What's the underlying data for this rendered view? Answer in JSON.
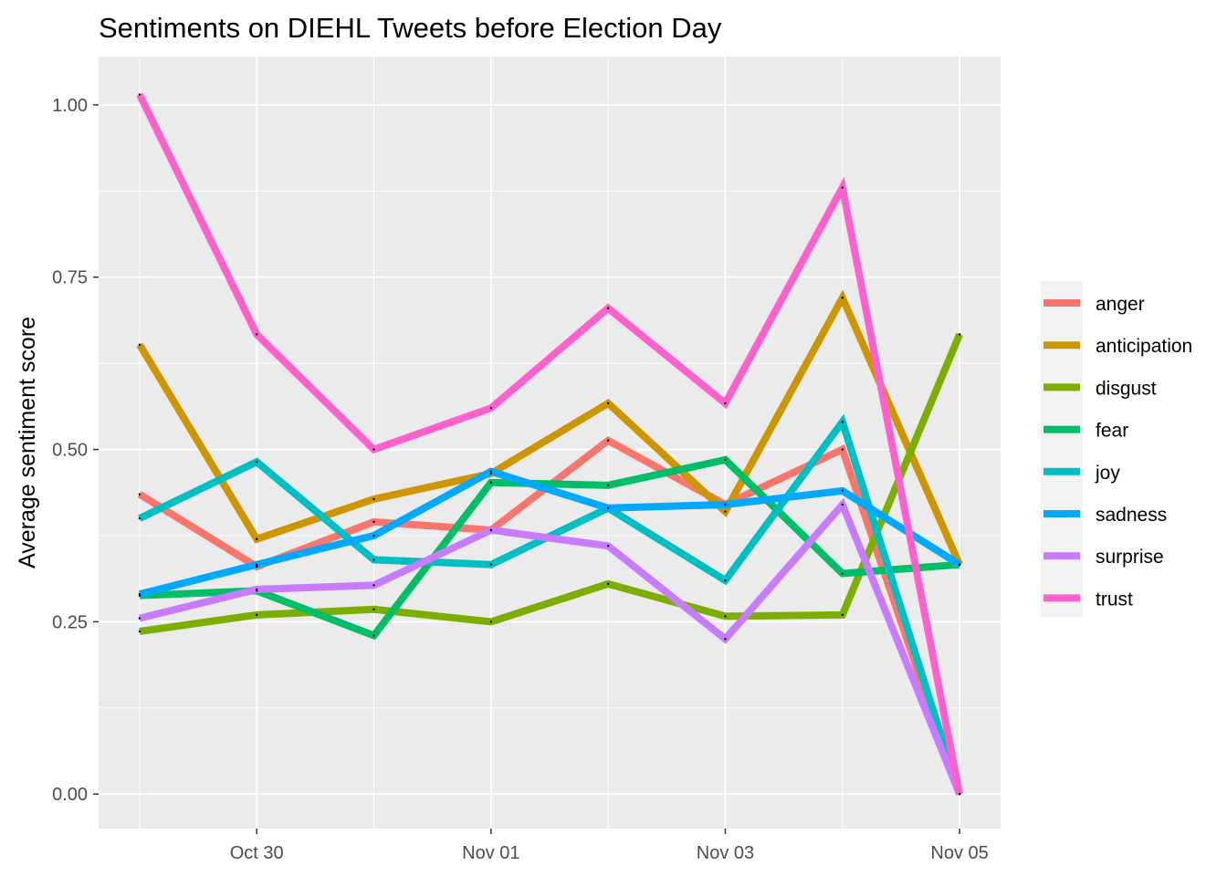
{
  "chart_data": {
    "type": "line",
    "title": "Sentiments on DIEHL Tweets before Election Day",
    "xlabel": "",
    "ylabel": "Average sentiment score",
    "x": [
      "2022-10-29",
      "2022-10-30",
      "2022-10-31",
      "2022-11-01",
      "2022-11-02",
      "2022-11-03",
      "2022-11-04",
      "2022-11-05"
    ],
    "xlim": [
      "2022-10-28.65",
      "2022-11-05.35"
    ],
    "x_ticks": [
      {
        "date": "2022-10-30",
        "label": "Oct 30"
      },
      {
        "date": "2022-11-01",
        "label": "Nov 01"
      },
      {
        "date": "2022-11-03",
        "label": "Nov 03"
      },
      {
        "date": "2022-11-05",
        "label": "Nov 05"
      }
    ],
    "ylim": [
      -0.05,
      1.07
    ],
    "y_ticks": [
      0.0,
      0.25,
      0.5,
      0.75,
      1.0
    ],
    "y_tick_labels": [
      "0.00",
      "0.25",
      "0.50",
      "0.75",
      "1.00"
    ],
    "grid": true,
    "legend": "right",
    "series": [
      {
        "name": "anger",
        "color": "#F8766D",
        "values": [
          0.435,
          0.33,
          0.395,
          0.383,
          0.513,
          0.42,
          0.5,
          0.0
        ]
      },
      {
        "name": "anticipation",
        "color": "#CD9600",
        "values": [
          0.652,
          0.37,
          0.428,
          0.465,
          0.567,
          0.41,
          0.72,
          0.333
        ]
      },
      {
        "name": "disgust",
        "color": "#7CAE00",
        "values": [
          0.236,
          0.26,
          0.268,
          0.25,
          0.305,
          0.258,
          0.26,
          0.667
        ]
      },
      {
        "name": "fear",
        "color": "#00BE67",
        "values": [
          0.288,
          0.295,
          0.23,
          0.452,
          0.448,
          0.485,
          0.32,
          0.333
        ]
      },
      {
        "name": "joy",
        "color": "#00BFC4",
        "values": [
          0.4,
          0.482,
          0.34,
          0.333,
          0.415,
          0.31,
          0.54,
          0.0
        ]
      },
      {
        "name": "sadness",
        "color": "#00A9FF",
        "values": [
          0.29,
          0.333,
          0.375,
          0.468,
          0.415,
          0.42,
          0.44,
          0.333
        ]
      },
      {
        "name": "surprise",
        "color": "#C77CFF",
        "values": [
          0.255,
          0.297,
          0.303,
          0.383,
          0.36,
          0.225,
          0.42,
          0.0
        ]
      },
      {
        "name": "trust",
        "color": "#FF61CC",
        "values": [
          1.015,
          0.667,
          0.5,
          0.56,
          0.705,
          0.567,
          0.88,
          0.0
        ]
      }
    ]
  }
}
